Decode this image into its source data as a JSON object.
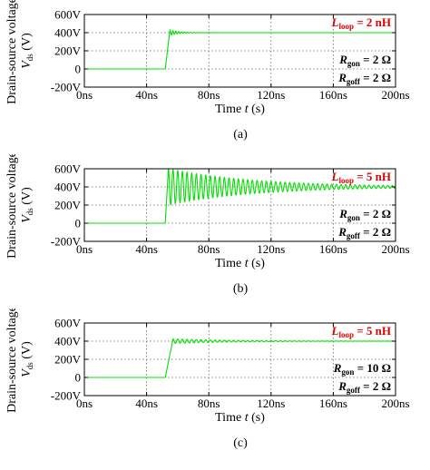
{
  "chart_data": [
    {
      "type": "line",
      "caption": "(a)",
      "xlabel": "Time t (s)",
      "ylabel_line1": "Drain-source voltage",
      "ylabel_line2": "V_ds (V)",
      "xlim": [
        0,
        200
      ],
      "ylim": [
        -200,
        600
      ],
      "xtick_values": [
        0,
        40,
        80,
        120,
        160,
        200
      ],
      "xtick_labels": [
        "0ns",
        "40ns",
        "80ns",
        "120ns",
        "160ns",
        "200ns"
      ],
      "ytick_values": [
        -200,
        0,
        200,
        400,
        600
      ],
      "ytick_labels": [
        "-200V",
        "0",
        "200V",
        "400V",
        "600V"
      ],
      "grid": true,
      "line_color": "#00e000",
      "label_color_red": "#e00000",
      "annotations": {
        "loop": {
          "symbol": "L",
          "sub": "loop",
          "value": "= 2 nH"
        },
        "gon": {
          "symbol": "R",
          "sub": "gon",
          "value": "= 2 Ω"
        },
        "goff": {
          "symbol": "R",
          "sub": "goff",
          "value": "= 2 Ω"
        }
      },
      "waveform": {
        "rise_start_ns": 52,
        "rise_end_ns": 55,
        "low_level_V": 0,
        "settle_V": 400,
        "overshoot_V": 30,
        "ring_decay_ns": 6,
        "ring_period_ns": 1.9
      }
    },
    {
      "type": "line",
      "caption": "(b)",
      "xlabel": "Time t (s)",
      "ylabel_line1": "Drain-source voltage",
      "ylabel_line2": "V_ds (V)",
      "xlim": [
        0,
        200
      ],
      "ylim": [
        -200,
        600
      ],
      "xtick_values": [
        0,
        40,
        80,
        120,
        160,
        200
      ],
      "xtick_labels": [
        "0ns",
        "40ns",
        "80ns",
        "120ns",
        "160ns",
        "200ns"
      ],
      "ytick_values": [
        -200,
        0,
        200,
        400,
        600
      ],
      "ytick_labels": [
        "-200V",
        "0",
        "200V",
        "400V",
        "600V"
      ],
      "grid": true,
      "line_color": "#00e000",
      "label_color_red": "#e00000",
      "annotations": {
        "loop": {
          "symbol": "L",
          "sub": "loop",
          "value": "= 5 nH"
        },
        "gon": {
          "symbol": "R",
          "sub": "gon",
          "value": "= 2 Ω"
        },
        "goff": {
          "symbol": "R",
          "sub": "goff",
          "value": "= 2 Ω"
        }
      },
      "waveform": {
        "rise_start_ns": 52,
        "rise_end_ns": 54,
        "low_level_V": 0,
        "settle_V": 400,
        "overshoot_V": 200,
        "ring_decay_ns": 55,
        "ring_period_ns": 3.0
      }
    },
    {
      "type": "line",
      "caption": "(c)",
      "xlabel": "Time t (s)",
      "ylabel_line1": "Drain-source voltage",
      "ylabel_line2": "V_ds (V)",
      "xlim": [
        0,
        200
      ],
      "ylim": [
        -200,
        600
      ],
      "xtick_values": [
        0,
        40,
        80,
        120,
        160,
        200
      ],
      "xtick_labels": [
        "0ns",
        "40ns",
        "80ns",
        "120ns",
        "160ns",
        "200ns"
      ],
      "ytick_values": [
        -200,
        0,
        200,
        400,
        600
      ],
      "ytick_labels": [
        "-200V",
        "0",
        "200V",
        "400V",
        "600V"
      ],
      "grid": true,
      "line_color": "#00e000",
      "label_color_red": "#e00000",
      "annotations": {
        "loop": {
          "symbol": "L",
          "sub": "loop",
          "value": "= 5 nH"
        },
        "gon": {
          "symbol": "R",
          "sub": "gon",
          "value": "= 10 Ω"
        },
        "goff": {
          "symbol": "R",
          "sub": "goff",
          "value": "= 2 Ω"
        }
      },
      "waveform": {
        "rise_start_ns": 52,
        "rise_end_ns": 57,
        "low_level_V": 0,
        "settle_V": 400,
        "overshoot_V": 25,
        "ring_decay_ns": 40,
        "ring_period_ns": 3.0
      }
    }
  ]
}
